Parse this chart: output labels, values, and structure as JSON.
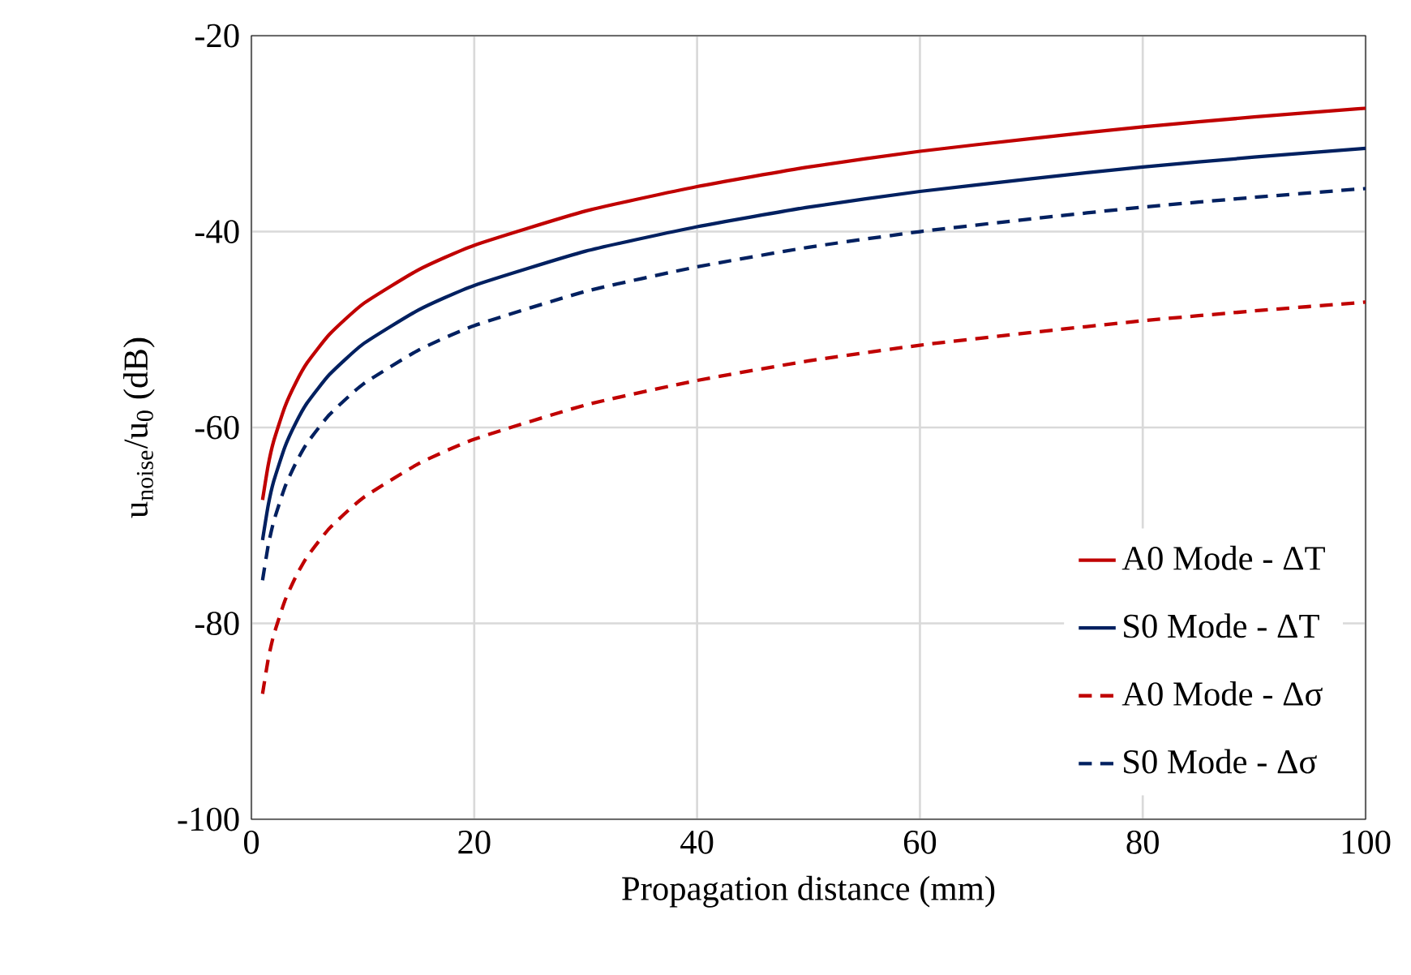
{
  "chart_data": {
    "type": "line",
    "xlabel": "Propagation distance (mm)",
    "ylabel": "u$_{noise}$/u$_{0}$ (dB)",
    "x": [
      1,
      1.5,
      2,
      3,
      4,
      5,
      7,
      10,
      15,
      20,
      30,
      40,
      50,
      60,
      70,
      80,
      90,
      100
    ],
    "series": [
      {
        "name": "A0 Mode - ΔT",
        "color": "#c00000",
        "line_style": "solid",
        "values": [
          -67.4,
          -63.9,
          -61.4,
          -57.9,
          -55.4,
          -53.4,
          -50.5,
          -47.4,
          -43.9,
          -41.4,
          -37.9,
          -35.4,
          -33.4,
          -31.8,
          -30.5,
          -29.3,
          -28.3,
          -27.4
        ]
      },
      {
        "name": "S0 Mode - ΔT",
        "color": "#002060",
        "line_style": "solid",
        "values": [
          -71.5,
          -68.0,
          -65.5,
          -62.0,
          -59.5,
          -57.5,
          -54.6,
          -51.5,
          -48.0,
          -45.5,
          -42.0,
          -39.5,
          -37.5,
          -35.9,
          -34.6,
          -33.4,
          -32.4,
          -31.5
        ]
      },
      {
        "name": "A0 Mode - Δσ",
        "color": "#c00000",
        "line_style": "dashed",
        "values": [
          -87.2,
          -83.7,
          -81.2,
          -77.7,
          -75.2,
          -73.2,
          -70.3,
          -67.2,
          -63.7,
          -61.2,
          -57.7,
          -55.2,
          -53.2,
          -51.6,
          -50.3,
          -49.1,
          -48.1,
          -47.2
        ]
      },
      {
        "name": "S0 Mode - Δσ",
        "color": "#002060",
        "line_style": "dashed",
        "values": [
          -75.6,
          -72.1,
          -69.6,
          -66.1,
          -63.6,
          -61.6,
          -58.7,
          -55.6,
          -52.1,
          -49.6,
          -46.1,
          -43.6,
          -41.6,
          -40.0,
          -38.7,
          -37.5,
          -36.5,
          -35.6
        ]
      }
    ],
    "xlim": [
      0,
      100
    ],
    "ylim": [
      -100,
      -20
    ],
    "xticks": [
      0,
      20,
      40,
      60,
      80,
      100
    ],
    "yticks": [
      -100,
      -80,
      -60,
      -40,
      -20
    ],
    "grid": true,
    "legend": "bottom right"
  }
}
